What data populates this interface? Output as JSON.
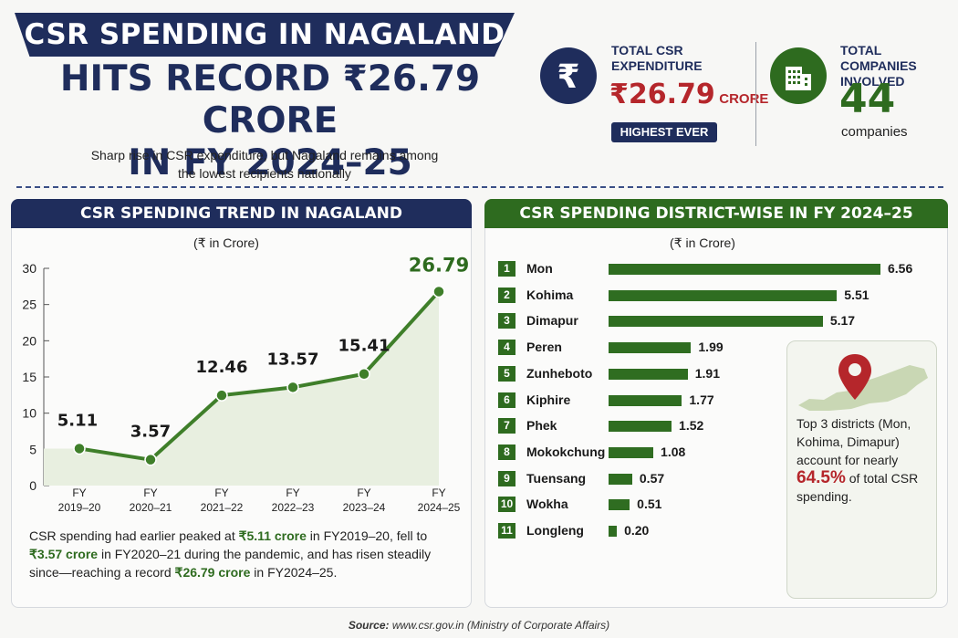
{
  "header": {
    "line1": "CSR SPENDING IN NAGALAND",
    "line2": "HITS RECORD ₹26.79 CRORE",
    "line3": "IN FY 2024–25",
    "subtitle_line1": "Sharp rise in CSR expenditure, but Nagaland remains among",
    "subtitle_line2": "the lowest recipients nationally"
  },
  "stats": {
    "expenditure": {
      "label_line1": "TOTAL CSR",
      "label_line2": "EXPENDITURE",
      "value": "₹26.79",
      "unit": "CRORE",
      "badge": "HIGHEST EVER",
      "icon": "rupee-icon",
      "color": "#1f2d5c"
    },
    "companies": {
      "label_line1": "TOTAL COMPANIES",
      "label_line2": "INVOLVED",
      "value": "44",
      "unit": "companies",
      "icon": "building-icon",
      "color": "#2e6b1f"
    }
  },
  "trend_panel": {
    "title": "CSR SPENDING TREND IN NAGALAND",
    "note": {
      "t1": "CSR spending had earlier peaked at ",
      "h1": "₹5.11 crore",
      "t2": " in FY2019–20, fell to ",
      "h2": "₹3.57 crore",
      "t3": " in FY2020–21 during the pandemic, and has risen steadily since—reaching a record ",
      "h3": "₹26.79 crore",
      "t4": " in FY2024–25."
    }
  },
  "district_panel": {
    "title": "CSR SPENDING DISTRICT-WISE IN FY 2024–25"
  },
  "callout": {
    "t1": "Top 3 districts (Mon, Kohima, Dimapur) account for nearly ",
    "pct": "64.5%",
    "t2": " of total CSR spending.",
    "icon": "map-pin-icon"
  },
  "source": {
    "label": "Source:",
    "text": "www.csr.gov.in (Ministry of Corporate Affairs)"
  },
  "chart_data": [
    {
      "type": "area",
      "unit_label": "(₹ in Crore)",
      "categories": [
        "FY\n2019–20",
        "FY\n2020–21",
        "FY\n2021–22",
        "FY\n2022–23",
        "FY\n2023–24",
        "FY\n2024–25"
      ],
      "values": [
        5.11,
        3.57,
        12.46,
        13.57,
        15.41,
        26.79
      ],
      "value_labels": [
        "5.11",
        "3.57",
        "12.46",
        "13.57",
        "15.41",
        "26.79"
      ],
      "ylim": [
        0,
        30
      ],
      "yticks": [
        0,
        5,
        10,
        15,
        20,
        25,
        30
      ],
      "grid": false,
      "color": "#3f7f2a"
    },
    {
      "type": "bar",
      "orientation": "horizontal",
      "unit_label": "(₹ in Crore)",
      "categories": [
        "Mon",
        "Kohima",
        "Dimapur",
        "Peren",
        "Zunheboto",
        "Kiphire",
        "Phek",
        "Mokokchung",
        "Tuensang",
        "Wokha",
        "Longleng"
      ],
      "values": [
        6.56,
        5.51,
        5.17,
        1.99,
        1.91,
        1.77,
        1.52,
        1.08,
        0.57,
        0.51,
        0.2
      ],
      "value_labels": [
        "6.56",
        "5.51",
        "5.17",
        "1.99",
        "1.91",
        "1.77",
        "1.52",
        "1.08",
        "0.57",
        "0.51",
        "0.20"
      ],
      "color": "#2f6d21"
    }
  ]
}
